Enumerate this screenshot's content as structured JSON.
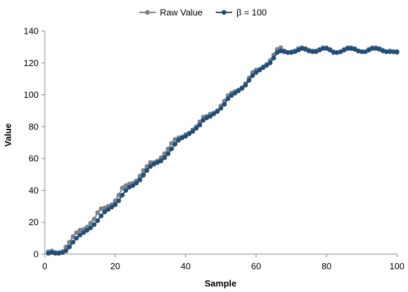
{
  "chart_data": {
    "type": "line",
    "xlabel": "Sample",
    "ylabel": "Value",
    "xlim": [
      0,
      100
    ],
    "ylim": [
      0,
      140
    ],
    "xticks": [
      0,
      20,
      40,
      60,
      80,
      100
    ],
    "yticks": [
      0,
      20,
      40,
      60,
      80,
      100,
      120,
      140
    ],
    "grid": false,
    "legend_position": "top-center",
    "series": [
      {
        "name": "Raw Value",
        "color": "#808080",
        "marker": "circle",
        "x": [
          1,
          2,
          3,
          4,
          5,
          6,
          7,
          8,
          9,
          10,
          11,
          12,
          13,
          14,
          15,
          16,
          17,
          18,
          19,
          20,
          21,
          22,
          23,
          24,
          25,
          26,
          27,
          28,
          29,
          30,
          31,
          32,
          33,
          34,
          35,
          36,
          37,
          38,
          39,
          40,
          41,
          42,
          43,
          44,
          45,
          46,
          47,
          48,
          49,
          50,
          51,
          52,
          53,
          54,
          55,
          56,
          57,
          58,
          59,
          60,
          61,
          62,
          63,
          64,
          65,
          66,
          67,
          68,
          69,
          70,
          71,
          72,
          73,
          74,
          75,
          76,
          77,
          78,
          79,
          80,
          81,
          82,
          83,
          84,
          85,
          86,
          87,
          88,
          89,
          90,
          91,
          92,
          93,
          94,
          95,
          96,
          97,
          98,
          99,
          100
        ],
        "values": [
          1.5,
          2,
          1,
          1,
          1.5,
          4.5,
          7.5,
          11,
          13.5,
          15,
          15.5,
          17,
          19.5,
          22,
          26,
          28.5,
          29,
          30,
          31,
          33.5,
          37,
          41.5,
          43,
          44,
          44.5,
          46,
          49,
          52.5,
          55,
          57.5,
          57.5,
          58.5,
          60.5,
          63,
          66,
          69.5,
          72,
          73,
          73.5,
          75,
          76,
          78,
          80,
          83,
          86,
          86.5,
          88,
          88.5,
          90,
          93,
          96,
          99.5,
          101,
          102,
          103,
          104.5,
          107,
          110.5,
          114,
          115.5,
          116,
          117.5,
          119,
          121.5,
          125,
          128.5,
          129.5,
          127.5,
          126.5,
          127,
          127.5,
          129,
          129.5,
          129,
          128,
          127.5,
          127.5,
          128.5,
          129.5,
          129.5,
          128.5,
          127,
          126.5,
          127,
          128.5,
          129.5,
          129.5,
          129,
          127.5,
          127,
          127,
          128.5,
          129.5,
          129.5,
          129,
          128,
          127,
          127.5,
          127,
          126.5
        ]
      },
      {
        "name": "β = 100",
        "color": "#1f4e79",
        "marker": "circle",
        "x": [
          1,
          2,
          3,
          4,
          5,
          6,
          7,
          8,
          9,
          10,
          11,
          12,
          13,
          14,
          15,
          16,
          17,
          18,
          19,
          20,
          21,
          22,
          23,
          24,
          25,
          26,
          27,
          28,
          29,
          30,
          31,
          32,
          33,
          34,
          35,
          36,
          37,
          38,
          39,
          40,
          41,
          42,
          43,
          44,
          45,
          46,
          47,
          48,
          49,
          50,
          51,
          52,
          53,
          54,
          55,
          56,
          57,
          58,
          59,
          60,
          61,
          62,
          63,
          64,
          65,
          66,
          67,
          68,
          69,
          70,
          71,
          72,
          73,
          74,
          75,
          76,
          77,
          78,
          79,
          80,
          81,
          82,
          83,
          84,
          85,
          86,
          87,
          88,
          89,
          90,
          91,
          92,
          93,
          94,
          95,
          96,
          97,
          98,
          99,
          100
        ],
        "values": [
          0.5,
          1,
          0.5,
          0.5,
          1,
          2,
          4.5,
          7.5,
          10,
          12,
          13.5,
          15,
          16.5,
          18.5,
          21,
          24,
          26.5,
          28,
          29.5,
          31,
          33.5,
          37,
          40,
          42,
          43,
          44.5,
          46.5,
          49.5,
          52.5,
          55,
          56.5,
          57.5,
          58.5,
          60.5,
          63,
          66,
          69,
          71.5,
          73,
          74,
          75.5,
          77,
          79,
          81,
          84,
          85.5,
          86.5,
          88,
          89.5,
          91.5,
          94,
          97.5,
          99.5,
          101,
          102.5,
          104,
          106,
          109,
          112,
          114,
          115.5,
          117,
          118.5,
          120,
          123,
          126.5,
          127.5,
          127,
          126.5,
          126.5,
          127,
          128,
          129,
          128.5,
          127.5,
          127,
          127,
          128,
          129,
          129,
          128,
          126.5,
          126.5,
          127,
          128,
          129,
          129,
          128.5,
          127.5,
          127,
          127,
          128,
          129,
          129,
          128.5,
          127.5,
          127,
          127,
          127,
          127
        ]
      }
    ]
  }
}
